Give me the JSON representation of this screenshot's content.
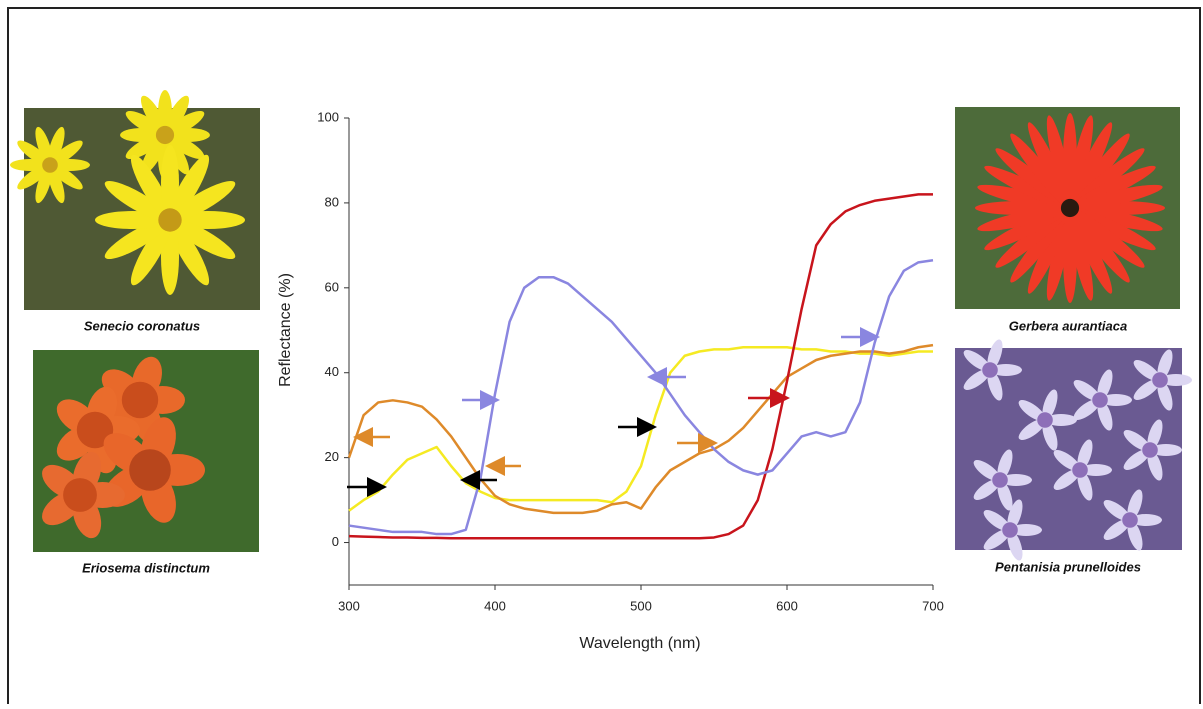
{
  "chart_data": {
    "type": "line",
    "x_label": "Wavelength (nm)",
    "y_label": "Reflectance (%)",
    "x": [
      300,
      310,
      320,
      330,
      340,
      350,
      360,
      370,
      380,
      390,
      400,
      410,
      420,
      430,
      440,
      450,
      460,
      470,
      480,
      490,
      500,
      510,
      520,
      530,
      540,
      550,
      560,
      570,
      580,
      590,
      600,
      610,
      620,
      630,
      640,
      650,
      660,
      670,
      680,
      690,
      700
    ],
    "xlim": [
      300,
      700
    ],
    "xticks": [
      300,
      400,
      500,
      600,
      700
    ],
    "ylim": [
      -10,
      100
    ],
    "yticks": [
      0,
      20,
      40,
      60,
      80,
      100
    ],
    "series": [
      {
        "name": "Senecio coronatus",
        "color": "#f5ea22",
        "values": [
          7.5,
          10,
          12,
          16,
          19.5,
          21,
          22.5,
          18,
          14,
          12,
          10.5,
          10,
          10,
          10,
          10,
          10,
          10,
          10,
          9.5,
          12,
          18,
          30,
          40,
          44,
          45,
          45.5,
          45.5,
          46,
          46,
          46,
          46,
          45.5,
          45.5,
          45,
          45,
          44.5,
          44.5,
          44,
          44.5,
          45,
          45
        ]
      },
      {
        "name": "Eriosema distinctum",
        "color": "#de8a2a",
        "values": [
          20,
          30,
          33,
          33.5,
          33,
          32,
          29,
          25,
          20,
          15,
          11,
          9,
          8,
          7.5,
          7,
          7,
          7,
          7.5,
          9,
          9.5,
          8,
          13,
          17,
          19,
          21,
          22,
          24,
          27,
          31,
          35,
          39,
          41,
          43,
          44,
          44.5,
          45,
          45,
          44.5,
          45,
          46,
          46.5
        ]
      },
      {
        "name": "Gerbera aurantiaca",
        "color": "#c8141c",
        "values": [
          1.5,
          1.4,
          1.3,
          1.2,
          1.2,
          1.1,
          1.1,
          1,
          1,
          1,
          1,
          1,
          1,
          1,
          1,
          1,
          1,
          1,
          1,
          1,
          1,
          1,
          1,
          1,
          1,
          1.2,
          2,
          4,
          10,
          22,
          38,
          55,
          70,
          75,
          78,
          79.5,
          80.5,
          81,
          81.5,
          82,
          82
        ]
      },
      {
        "name": "Pentanisia prunelloides",
        "color": "#8a86e0",
        "values": [
          4,
          3.5,
          3,
          2.5,
          2.5,
          2.5,
          2,
          2,
          3,
          15,
          35,
          52,
          60,
          62.5,
          62.5,
          61,
          58,
          55,
          52,
          48,
          44,
          40,
          35,
          30,
          26,
          22,
          19,
          17,
          16,
          17,
          21,
          25,
          26,
          25,
          26,
          33,
          47,
          58,
          64,
          66,
          66.5
        ]
      }
    ]
  }
}
